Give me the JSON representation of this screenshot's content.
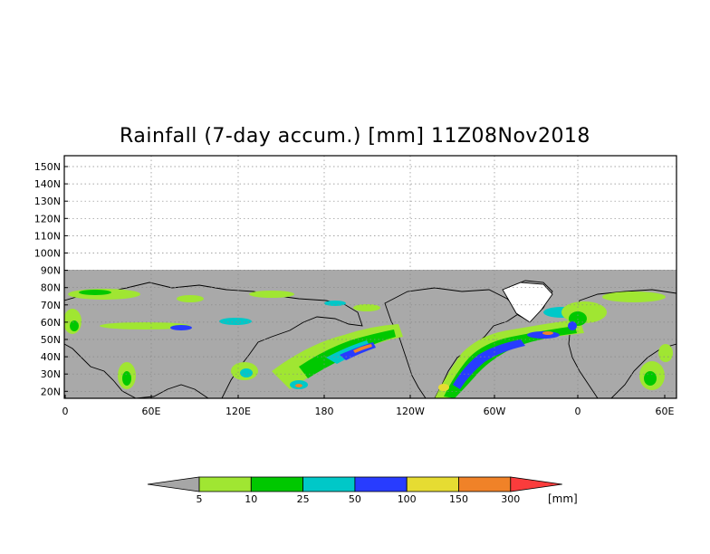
{
  "title": "Rainfall (7-day accum.) [mm] 11Z08Nov2018",
  "lat_labels": [
    "150N",
    "140N",
    "130N",
    "120N",
    "110N",
    "100N",
    "90N",
    "80N",
    "70N",
    "60N",
    "50N",
    "40N",
    "30N",
    "20N"
  ],
  "lon_labels": [
    "0",
    "60E",
    "120E",
    "180",
    "120W",
    "60W",
    "0",
    "60E"
  ],
  "colorbar": {
    "bins": [
      "#a6a6a6",
      "#a0e632",
      "#00c800",
      "#00c8c8",
      "#283cff",
      "#e6dc32",
      "#f08228",
      "#fa3c3c"
    ],
    "labels": [
      "5",
      "10",
      "25",
      "50",
      "100",
      "150",
      "300"
    ],
    "unit": "[mm]"
  }
}
